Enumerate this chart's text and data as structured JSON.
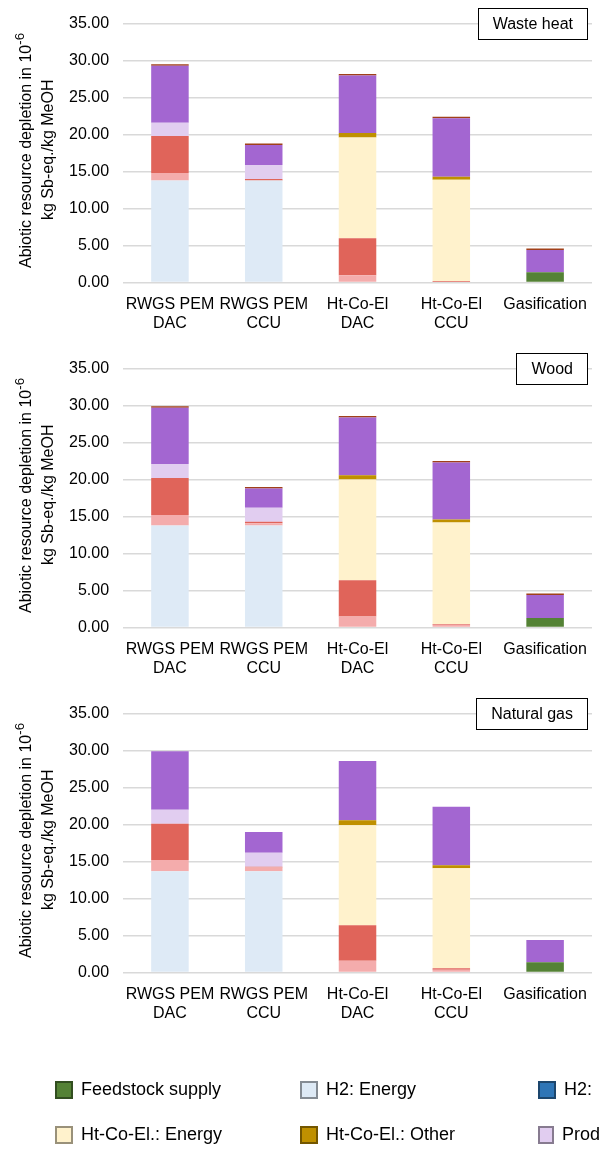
{
  "chart_data": [
    {
      "type": "bar",
      "title": "Waste heat",
      "ylabel": "Abiotic resource depletion in 10$^{-6}$ kg Sb-eq./kg MeOH",
      "categories": [
        "RWGS PEM DAC",
        "RWGS PEM CCU",
        "Ht-Co-El DAC",
        "Ht-Co-El CCU",
        "Gasification"
      ],
      "stacked": true,
      "ylim": [
        0,
        35
      ],
      "yticks": [
        {
          "value": 0,
          "label": "0.00"
        },
        {
          "value": 5,
          "label": "5.00"
        },
        {
          "value": 10,
          "label": "10.00"
        },
        {
          "value": 15,
          "label": "15.00"
        },
        {
          "value": 20,
          "label": "20.00"
        },
        {
          "value": 25,
          "label": "25.00"
        },
        {
          "value": 30,
          "label": "30.00"
        },
        {
          "value": 35,
          "label": "35.00"
        }
      ],
      "grid": "y",
      "legend": false,
      "series": [
        {
          "color": "#548235",
          "values": [
            0,
            0,
            0,
            0,
            1.4
          ]
        },
        {
          "color": "#deeaf6",
          "values": [
            13.8,
            13.8,
            0,
            0,
            0
          ]
        },
        {
          "color": "#2e75b6",
          "values": [
            0,
            0,
            0,
            0,
            0
          ]
        },
        {
          "color": "#f4acac",
          "values": [
            1.0,
            null,
            1.0,
            0.1,
            0
          ]
        },
        {
          "color": "#e0645a",
          "values": [
            5.0,
            0.2,
            5.0,
            0.1,
            0
          ]
        },
        {
          "color": "#fff2cc",
          "values": [
            0,
            0,
            13.6,
            13.7,
            0
          ]
        },
        {
          "color": "#bf9000",
          "values": [
            0,
            0,
            0.6,
            0.4,
            0
          ]
        },
        {
          "color": "#e1cdf0",
          "values": [
            1.8,
            1.9,
            0,
            0,
            0
          ]
        },
        {
          "color": "#a366d1",
          "values": [
            7.7,
            2.7,
            7.8,
            7.9,
            3.0
          ]
        },
        {
          "color": "#a0401a",
          "values": [
            0.2,
            0.2,
            0.2,
            0.2,
            0.2
          ]
        }
      ]
    },
    {
      "type": "bar",
      "title": "Wood",
      "ylabel": "Abiotic resource depletion in 10$^{-6}$ kg Sb-eq./kg MeOH",
      "categories": [
        "RWGS PEM DAC",
        "RWGS PEM CCU",
        "Ht-Co-El DAC",
        "Ht-Co-El CCU",
        "Gasification"
      ],
      "stacked": true,
      "ylim": [
        0,
        35
      ],
      "yticks": [
        {
          "value": 0,
          "label": "0.00"
        },
        {
          "value": 5,
          "label": "5.00"
        },
        {
          "value": 10,
          "label": "10.00"
        },
        {
          "value": 15,
          "label": "15.00"
        },
        {
          "value": 20,
          "label": "20.00"
        },
        {
          "value": 25,
          "label": "25.00"
        },
        {
          "value": 30,
          "label": "30.00"
        },
        {
          "value": 35,
          "label": "35.00"
        }
      ],
      "grid": "y",
      "legend": false,
      "series": [
        {
          "color": "#548235",
          "values": [
            0,
            0,
            0,
            0,
            1.3
          ]
        },
        {
          "color": "#deeaf6",
          "values": [
            13.8,
            13.8,
            0,
            0,
            0
          ]
        },
        {
          "color": "#2e75b6",
          "values": [
            0,
            0,
            0,
            0,
            0
          ]
        },
        {
          "color": "#f4acac",
          "values": [
            1.4,
            0.3,
            1.5,
            0.4,
            0
          ]
        },
        {
          "color": "#e0645a",
          "values": [
            5.0,
            0.2,
            4.9,
            0.1,
            0
          ]
        },
        {
          "color": "#fff2cc",
          "values": [
            0,
            0,
            13.6,
            13.7,
            0
          ]
        },
        {
          "color": "#bf9000",
          "values": [
            0,
            0,
            0.6,
            0.4,
            0
          ]
        },
        {
          "color": "#e1cdf0",
          "values": [
            1.9,
            1.9,
            0,
            0,
            0
          ]
        },
        {
          "color": "#a366d1",
          "values": [
            7.6,
            2.6,
            7.8,
            7.7,
            3.1
          ]
        },
        {
          "color": "#a0401a",
          "values": [
            0.2,
            0.2,
            0.2,
            0.2,
            0.2
          ]
        }
      ]
    },
    {
      "type": "bar",
      "title": "Natural gas",
      "ylabel": "Abiotic resource depletion in 10$^{-6}$ kg Sb-eq./kg MeOH",
      "categories": [
        "RWGS PEM DAC",
        "RWGS PEM CCU",
        "Ht-Co-El DAC",
        "Ht-Co-El CCU",
        "Gasification"
      ],
      "stacked": true,
      "ylim": [
        0,
        35
      ],
      "yticks": [
        {
          "value": 0,
          "label": "0.00"
        },
        {
          "value": 5,
          "label": "5.00"
        },
        {
          "value": 10,
          "label": "10.00"
        },
        {
          "value": 15,
          "label": "15.00"
        },
        {
          "value": 20,
          "label": "20.00"
        },
        {
          "value": 25,
          "label": "25.00"
        },
        {
          "value": 30,
          "label": "30.00"
        },
        {
          "value": 35,
          "label": "35.00"
        }
      ],
      "grid": "y",
      "legend": "bottom",
      "series": [
        {
          "name": "Feedstock supply",
          "color": "#548235",
          "values": [
            0,
            0,
            0,
            0,
            1.4
          ]
        },
        {
          "name": "H2: Energy",
          "color": "#deeaf6",
          "values": [
            13.7,
            13.7,
            0,
            0,
            0
          ]
        },
        {
          "name": "H2:",
          "color": "#2e75b6",
          "values": [
            0,
            0,
            0,
            0,
            0
          ]
        },
        {
          "color": "#f4acac",
          "values": [
            1.5,
            0.5,
            1.6,
            0.4,
            0
          ]
        },
        {
          "color": "#e0645a",
          "values": [
            4.9,
            0.1,
            4.8,
            0.2,
            0
          ]
        },
        {
          "name": "Ht-Co-El.: Energy",
          "color": "#fff2cc",
          "values": [
            0,
            0,
            13.5,
            13.5,
            0
          ]
        },
        {
          "name": "Ht-Co-El.: Other",
          "color": "#bf9000",
          "values": [
            0,
            0,
            0.7,
            0.4,
            0
          ]
        },
        {
          "name": "Prod",
          "color": "#e1cdf0",
          "values": [
            1.9,
            1.9,
            0,
            0,
            0
          ]
        },
        {
          "color": "#a366d1",
          "values": [
            7.9,
            2.8,
            8.0,
            7.9,
            3.0
          ]
        }
      ]
    }
  ]
}
